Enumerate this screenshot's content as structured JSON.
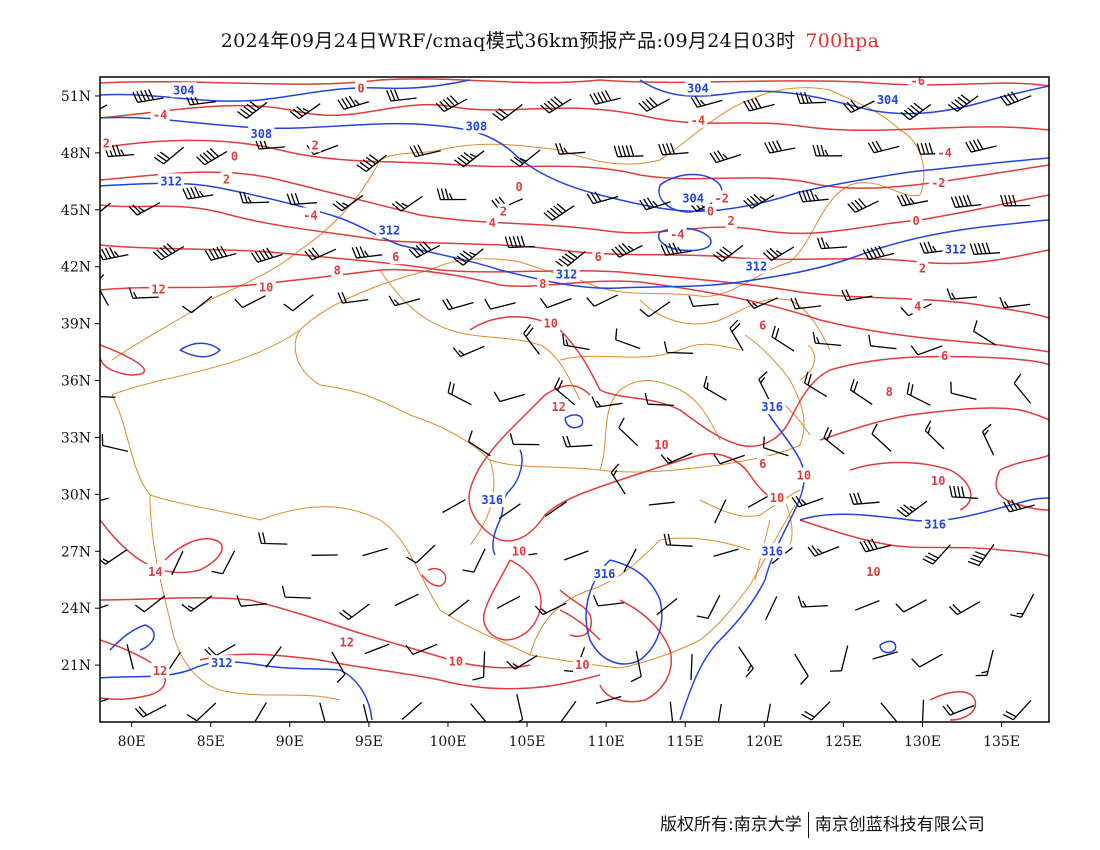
{
  "header": {
    "title": "2024年09月24日WRF/cmaq模式36km预报产品:09月24日03时",
    "level": "700hpa"
  },
  "footer": {
    "copyright": "版权所有:南京大学",
    "company": "南京创蓝科技有限公司"
  },
  "map": {
    "lon_range": [
      78,
      138
    ],
    "lat_range": [
      18,
      52
    ],
    "x_ticks": [
      "80E",
      "85E",
      "90E",
      "95E",
      "100E",
      "105E",
      "110E",
      "115E",
      "120E",
      "125E",
      "130E",
      "135E"
    ],
    "y_ticks": [
      "51N",
      "48N",
      "45N",
      "42N",
      "39N",
      "36N",
      "33N",
      "30N",
      "27N",
      "24N",
      "21N"
    ],
    "colors": {
      "height": "#2244dd",
      "temperature": "#e03c3c",
      "boundary": "#e08a30",
      "barb": "#000000"
    },
    "temperature_labels": [
      {
        "text": "0",
        "lon": 94.5,
        "lat": 51.4
      },
      {
        "text": "-4",
        "lon": 81.8,
        "lat": 50.0
      },
      {
        "text": "2",
        "lon": 78.4,
        "lat": 48.5
      },
      {
        "text": "0",
        "lon": 86.5,
        "lat": 47.8
      },
      {
        "text": "2",
        "lon": 91.6,
        "lat": 48.4
      },
      {
        "text": "2",
        "lon": 86.0,
        "lat": 46.6
      },
      {
        "text": "0",
        "lon": 104.5,
        "lat": 46.2
      },
      {
        "text": "-4",
        "lon": 91.3,
        "lat": 44.7
      },
      {
        "text": "2",
        "lon": 103.5,
        "lat": 44.9
      },
      {
        "text": "4",
        "lon": 102.8,
        "lat": 44.3
      },
      {
        "text": "6",
        "lon": 96.7,
        "lat": 42.5
      },
      {
        "text": "8",
        "lon": 93.0,
        "lat": 41.8
      },
      {
        "text": "6",
        "lon": 109.5,
        "lat": 42.5
      },
      {
        "text": "10",
        "lon": 88.5,
        "lat": 40.9
      },
      {
        "text": "12",
        "lon": 81.7,
        "lat": 40.8
      },
      {
        "text": "8",
        "lon": 106.0,
        "lat": 41.1
      },
      {
        "text": "10",
        "lon": 106.5,
        "lat": 39.0
      },
      {
        "text": "12",
        "lon": 107.0,
        "lat": 34.6
      },
      {
        "text": "10",
        "lon": 113.5,
        "lat": 32.6
      },
      {
        "text": "6",
        "lon": 119.9,
        "lat": 38.9
      },
      {
        "text": "6",
        "lon": 131.4,
        "lat": 37.3
      },
      {
        "text": "8",
        "lon": 127.9,
        "lat": 35.4
      },
      {
        "text": "6",
        "lon": 119.9,
        "lat": 31.6
      },
      {
        "text": "10",
        "lon": 122.5,
        "lat": 31.0
      },
      {
        "text": "10",
        "lon": 131.0,
        "lat": 30.7
      },
      {
        "text": "10",
        "lon": 120.8,
        "lat": 29.8
      },
      {
        "text": "10",
        "lon": 104.5,
        "lat": 27.0
      },
      {
        "text": "14",
        "lon": 81.5,
        "lat": 25.9
      },
      {
        "text": "10",
        "lon": 126.9,
        "lat": 25.9
      },
      {
        "text": "12",
        "lon": 93.6,
        "lat": 22.2
      },
      {
        "text": "12",
        "lon": 81.8,
        "lat": 20.7
      },
      {
        "text": "10",
        "lon": 100.5,
        "lat": 21.2
      },
      {
        "text": "10",
        "lon": 108.5,
        "lat": 21.0
      },
      {
        "text": "-4",
        "lon": 115.8,
        "lat": 49.7
      },
      {
        "text": "-6",
        "lon": 129.7,
        "lat": 51.8
      },
      {
        "text": "-4",
        "lon": 131.4,
        "lat": 48.0
      },
      {
        "text": "-2",
        "lon": 131.0,
        "lat": 46.4
      },
      {
        "text": "-2",
        "lon": 117.3,
        "lat": 45.6
      },
      {
        "text": "0",
        "lon": 116.6,
        "lat": 44.9
      },
      {
        "text": "2",
        "lon": 117.9,
        "lat": 44.4
      },
      {
        "text": "0",
        "lon": 129.6,
        "lat": 44.4
      },
      {
        "text": "-4",
        "lon": 114.5,
        "lat": 43.7
      },
      {
        "text": "2",
        "lon": 130.0,
        "lat": 41.9
      },
      {
        "text": "4",
        "lon": 129.7,
        "lat": 39.9
      }
    ],
    "height_labels": [
      {
        "text": "304",
        "lon": 83.3,
        "lat": 51.3
      },
      {
        "text": "308",
        "lon": 88.2,
        "lat": 49.0
      },
      {
        "text": "312",
        "lon": 82.5,
        "lat": 46.5
      },
      {
        "text": "304",
        "lon": 115.8,
        "lat": 51.4
      },
      {
        "text": "308",
        "lon": 101.8,
        "lat": 49.4
      },
      {
        "text": "312",
        "lon": 96.3,
        "lat": 43.9
      },
      {
        "text": "304",
        "lon": 115.5,
        "lat": 45.6
      },
      {
        "text": "304",
        "lon": 127.8,
        "lat": 50.8
      },
      {
        "text": "312",
        "lon": 132.1,
        "lat": 42.9
      },
      {
        "text": "312",
        "lon": 107.5,
        "lat": 41.6
      },
      {
        "text": "312",
        "lon": 119.5,
        "lat": 42.0
      },
      {
        "text": "316",
        "lon": 120.5,
        "lat": 34.6
      },
      {
        "text": "316",
        "lon": 102.8,
        "lat": 29.7
      },
      {
        "text": "316",
        "lon": 130.8,
        "lat": 28.4
      },
      {
        "text": "316",
        "lon": 120.5,
        "lat": 27.0
      },
      {
        "text": "316",
        "lon": 109.9,
        "lat": 25.8
      },
      {
        "text": "312",
        "lon": 85.7,
        "lat": 21.1
      }
    ]
  }
}
